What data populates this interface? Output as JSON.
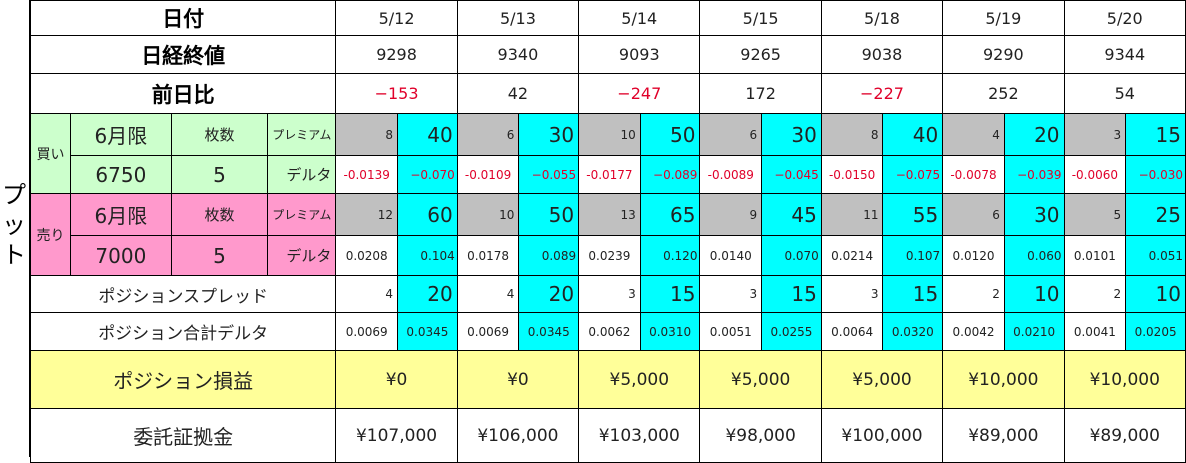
{
  "side_label": "プット",
  "headers": {
    "date": "日付",
    "close": "日経終値",
    "change": "前日比"
  },
  "dates": [
    "5/12",
    "5/13",
    "5/14",
    "5/15",
    "5/18",
    "5/19",
    "5/20"
  ],
  "closes": [
    "9298",
    "9340",
    "9093",
    "9265",
    "9038",
    "9290",
    "9344"
  ],
  "changes": [
    "−153",
    "42",
    "−247",
    "172",
    "−227",
    "252",
    "54"
  ],
  "change_negative": [
    true,
    false,
    true,
    false,
    true,
    false,
    false
  ],
  "buy": {
    "side": "買い",
    "month": "6月限",
    "qty_label": "枚数",
    "premium_label": "プレミアム",
    "strike": "6750",
    "qty": "5",
    "delta_label": "デルタ",
    "premium": [
      "8",
      "6",
      "10",
      "6",
      "8",
      "4",
      "3"
    ],
    "premium_total": [
      "40",
      "30",
      "50",
      "30",
      "40",
      "20",
      "15"
    ],
    "delta": [
      "-0.0139",
      "-0.0109",
      "-0.0177",
      "-0.0089",
      "-0.0150",
      "-0.0078",
      "-0.0060"
    ],
    "delta_total": [
      "−0.070",
      "−0.055",
      "−0.089",
      "−0.045",
      "−0.075",
      "−0.039",
      "−0.030"
    ]
  },
  "sell": {
    "side": "売り",
    "month": "6月限",
    "qty_label": "枚数",
    "premium_label": "プレミアム",
    "strike": "7000",
    "qty": "5",
    "delta_label": "デルタ",
    "premium": [
      "12",
      "10",
      "13",
      "9",
      "11",
      "6",
      "5"
    ],
    "premium_total": [
      "60",
      "50",
      "65",
      "45",
      "55",
      "30",
      "25"
    ],
    "delta": [
      "0.0208",
      "0.0178",
      "0.0239",
      "0.0140",
      "0.0214",
      "0.0120",
      "0.0101"
    ],
    "delta_total": [
      "0.104",
      "0.089",
      "0.120",
      "0.070",
      "0.107",
      "0.060",
      "0.051"
    ]
  },
  "spread": {
    "label": "ポジションスプレッド",
    "unit": [
      "4",
      "4",
      "3",
      "3",
      "3",
      "2",
      "2"
    ],
    "total": [
      "20",
      "20",
      "15",
      "15",
      "15",
      "10",
      "10"
    ]
  },
  "total_delta": {
    "label": "ポジション合計デルタ",
    "unit": [
      "0.0069",
      "0.0069",
      "0.0062",
      "0.0051",
      "0.0064",
      "0.0042",
      "0.0041"
    ],
    "total": [
      "0.0345",
      "0.0345",
      "0.0310",
      "0.0255",
      "0.0320",
      "0.0210",
      "0.0205"
    ]
  },
  "pnl": {
    "label": "ポジション損益",
    "values": [
      "¥0",
      "¥0",
      "¥5,000",
      "¥5,000",
      "¥5,000",
      "¥10,000",
      "¥10,000"
    ]
  },
  "margin": {
    "label": "委託証拠金",
    "values": [
      "¥107,000",
      "¥106,000",
      "¥103,000",
      "¥98,000",
      "¥100,000",
      "¥89,000",
      "¥89,000"
    ]
  },
  "colors": {
    "buy": "#ccffcc",
    "sell": "#ff99cc",
    "premium": "#c0c0c0",
    "total": "#00ffff",
    "pnl": "#ffff99",
    "negative": "#e0002a"
  }
}
